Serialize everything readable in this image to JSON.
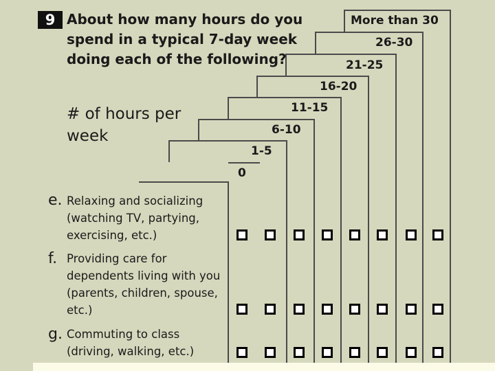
{
  "question": {
    "number": "9",
    "text": "About how many hours do you spend in a typical 7-day week doing each of the following?",
    "subheading": "# of hours per week"
  },
  "columns": [
    "0",
    "1-5",
    "6-10",
    "11-15",
    "16-20",
    "21-25",
    "26-30",
    "More than 30"
  ],
  "items": [
    {
      "letter": "e.",
      "text": "Relaxing and socializing (watching TV, partying, exercising, etc.)"
    },
    {
      "letter": "f.",
      "text": "Providing care for dependents living with you (parents, children, spouse, etc.)"
    },
    {
      "letter": "g.",
      "text": "Commuting to class (driving, walking, etc.)"
    }
  ],
  "colors": {
    "panel": "#d6d8bd",
    "page": "#fcfbe7",
    "ink": "#1a1a1a"
  }
}
